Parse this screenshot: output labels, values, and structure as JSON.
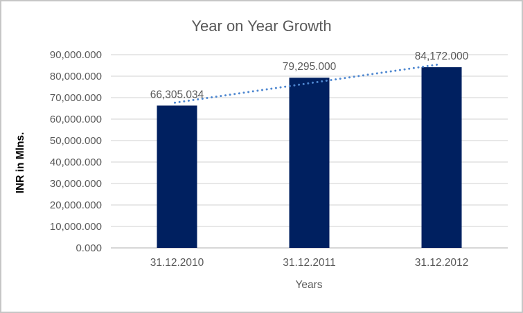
{
  "frame": {
    "background": "#FFFFFF",
    "border_color": "#C6C6C6"
  },
  "chart_data": {
    "type": "bar",
    "title": "Year on Year Growth",
    "xlabel": "Years",
    "ylabel": "INR in Mlns.",
    "categories": [
      "31.12.2010",
      "31.12.2011",
      "31.12.2012"
    ],
    "series": [
      {
        "name": "INR in Mlns.",
        "values": [
          66305.034,
          79295.0,
          84172.0
        ],
        "value_labels": [
          "66,305.034",
          "79,295.000",
          "84,172.000"
        ],
        "color": "#002060"
      }
    ],
    "trendline": {
      "type": "linear",
      "style": "dotted",
      "color": "#4E87D0"
    },
    "y_axis": {
      "min": 0,
      "max": 90000,
      "step": 10000,
      "tick_labels": [
        "0.000",
        "10,000.000",
        "20,000.000",
        "30,000.000",
        "40,000.000",
        "50,000.000",
        "60,000.000",
        "70,000.000",
        "80,000.000",
        "90,000.000"
      ]
    },
    "grid": true,
    "legend": "none",
    "colors": {
      "grid_line": "#D9D9D9",
      "axis_line": "#BFBFBF",
      "text": "#595959",
      "axis_title_text": "#000000"
    }
  }
}
